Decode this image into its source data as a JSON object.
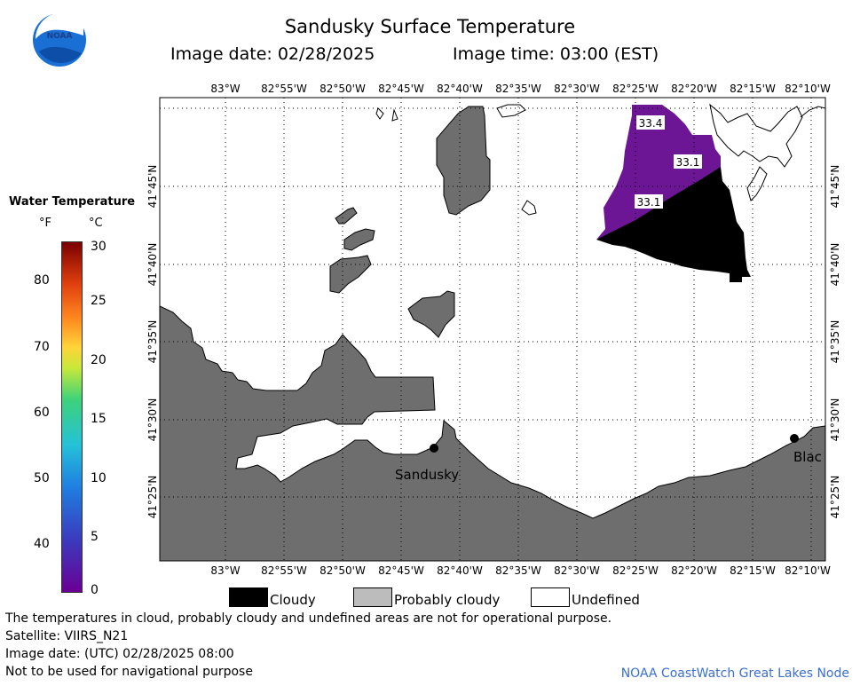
{
  "header": {
    "title": "Sandusky Surface Temperature",
    "image_date_label": "Image date: 02/28/2025",
    "image_time_label": "Image time: 03:00 (EST)",
    "logo_text": "NOAA"
  },
  "colorbar": {
    "title": "Water Temperature",
    "unit_f": "°F",
    "unit_c": "°C",
    "f_ticks": [
      "80",
      "70",
      "60",
      "50",
      "40"
    ],
    "c_ticks": [
      "30",
      "25",
      "20",
      "15",
      "10",
      "5",
      "0"
    ],
    "range_c": [
      0,
      30
    ],
    "colors": [
      "#6a0094",
      "#3b3bbd",
      "#1f7fe0",
      "#25c1d8",
      "#3ed27a",
      "#c7e83a",
      "#ffd43a",
      "#ff8a1f",
      "#e0400f",
      "#7a0000"
    ]
  },
  "map": {
    "lon_labels": [
      "83°W",
      "82°55'W",
      "82°50'W",
      "82°45'W",
      "82°40'W",
      "82°35'W",
      "82°30'W",
      "82°25'W",
      "82°20'W",
      "82°15'W",
      "82°10'W"
    ],
    "lat_labels": [
      "41°45'N",
      "41°40'N",
      "41°35'N",
      "41°30'N",
      "41°25'N"
    ],
    "temp_labels": [
      "33.4",
      "33.1",
      "33.1"
    ],
    "cities": [
      "Sandusky",
      "Blac"
    ],
    "land_color": "#6e6e6e",
    "cloud_color": "#000000",
    "water_temp_color": "#6c1696",
    "probably_cloudy_color": "#bcbcbc"
  },
  "legend": {
    "cloudy": "Cloudy",
    "probably_cloudy": "Probably cloudy",
    "undefined": "Undefined"
  },
  "footer": {
    "line1": "The temperatures in cloud, probably cloudy and undefined areas are not for operational purpose.",
    "line2": "Satellite: VIIRS_N21",
    "line3": "Image date: (UTC) 02/28/2025  08:00",
    "line4": "Not to be used for navigational purpose",
    "credit": "NOAA CoastWatch Great Lakes Node"
  }
}
